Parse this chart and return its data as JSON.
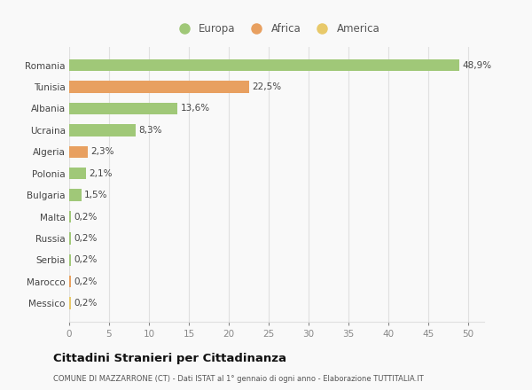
{
  "categories": [
    "Messico",
    "Marocco",
    "Serbia",
    "Russia",
    "Malta",
    "Bulgaria",
    "Polonia",
    "Algeria",
    "Ucraina",
    "Albania",
    "Tunisia",
    "Romania"
  ],
  "values": [
    0.2,
    0.2,
    0.2,
    0.2,
    0.2,
    1.5,
    2.1,
    2.3,
    8.3,
    13.6,
    22.5,
    48.9
  ],
  "labels": [
    "0,2%",
    "0,2%",
    "0,2%",
    "0,2%",
    "0,2%",
    "1,5%",
    "2,1%",
    "2,3%",
    "8,3%",
    "13,6%",
    "22,5%",
    "48,9%"
  ],
  "colors": [
    "#e8c96a",
    "#e8a060",
    "#a0c878",
    "#a0c878",
    "#a0c878",
    "#a0c878",
    "#a0c878",
    "#e8a060",
    "#a0c878",
    "#a0c878",
    "#e8a060",
    "#a0c878"
  ],
  "legend": [
    {
      "label": "Europa",
      "color": "#a0c878"
    },
    {
      "label": "Africa",
      "color": "#e8a060"
    },
    {
      "label": "America",
      "color": "#e8c96a"
    }
  ],
  "xlim": [
    0,
    52
  ],
  "xticks": [
    0,
    5,
    10,
    15,
    20,
    25,
    30,
    35,
    40,
    45,
    50
  ],
  "title": "Cittadini Stranieri per Cittadinanza",
  "subtitle": "COMUNE DI MAZZARRONE (CT) - Dati ISTAT al 1° gennaio di ogni anno - Elaborazione TUTTITALIA.IT",
  "background_color": "#f9f9f9",
  "grid_color": "#e0e0e0",
  "bar_height": 0.55,
  "label_fontsize": 7.5,
  "tick_fontsize": 7.5,
  "legend_fontsize": 8.5
}
